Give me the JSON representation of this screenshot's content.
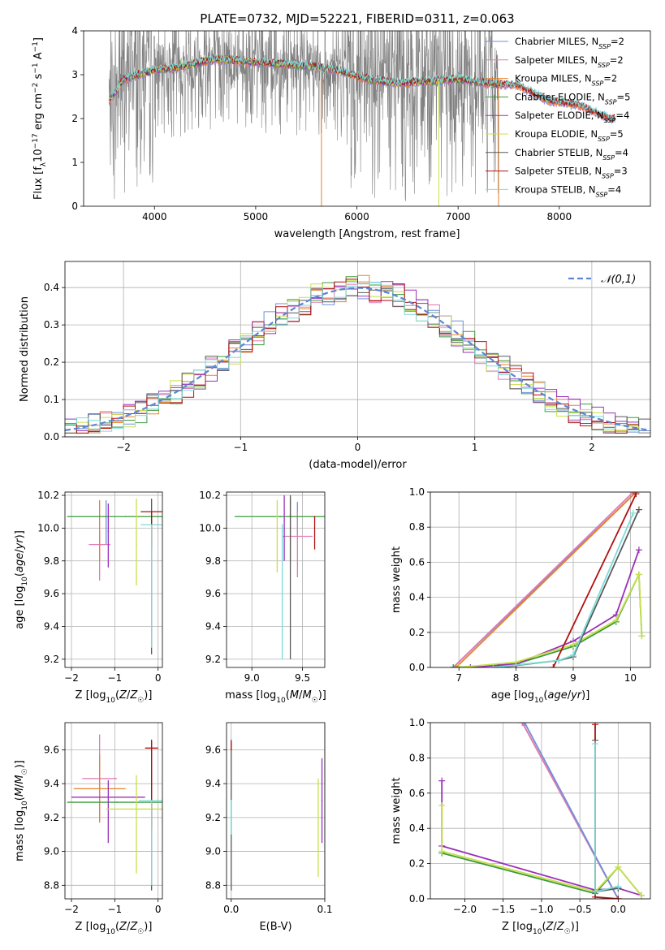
{
  "title": "PLATE=0732, MJD=52221, FIBERID=0311, z=0.063",
  "colors": {
    "Chabrier MILES": "#6f8fdc",
    "Salpeter MILES": "#e07ab4",
    "Kroupa MILES": "#e8822a",
    "Chabrier ELODIE": "#3c9a3c",
    "Salpeter ELODIE": "#9a30b8",
    "Kroupa ELODIE": "#c8e04a",
    "Chabrier STELIB": "#5a5a5a",
    "Salpeter STELIB": "#b01010",
    "Kroupa STELIB": "#7adcd8",
    "data": "#808080"
  },
  "legend": [
    {
      "pre": "Chabrier MILES, N",
      "sub": "SSP",
      "post": "=2",
      "key": "Chabrier MILES"
    },
    {
      "pre": "Salpeter MILES, N",
      "sub": "SSP",
      "post": "=2",
      "key": "Salpeter MILES"
    },
    {
      "pre": "Kroupa MILES, N",
      "sub": "SSP",
      "post": "=2",
      "key": "Kroupa MILES"
    },
    {
      "pre": "Chabrier ELODIE, N",
      "sub": "SSP",
      "post": "=5",
      "key": "Chabrier ELODIE"
    },
    {
      "pre": "Salpeter ELODIE, N",
      "sub": "SSP",
      "post": "=4",
      "key": "Salpeter ELODIE"
    },
    {
      "pre": "Kroupa ELODIE, N",
      "sub": "SSP",
      "post": "=5",
      "key": "Kroupa ELODIE"
    },
    {
      "pre": "Chabrier STELIB, N",
      "sub": "SSP",
      "post": "=4",
      "key": "Chabrier STELIB"
    },
    {
      "pre": "Salpeter STELIB, N",
      "sub": "SSP",
      "post": "=3",
      "key": "Salpeter STELIB"
    },
    {
      "pre": "Kroupa STELIB, N",
      "sub": "SSP",
      "post": "=4",
      "key": "Kroupa STELIB"
    }
  ],
  "chart_data": [
    {
      "type": "line",
      "panel": "spectrum",
      "xlabel": "wavelength [Angstrom, rest frame]",
      "ylabel": "Flux [f_λ 10^-17 erg cm^-2 s^-1 A^-1]",
      "xlim": [
        3300,
        8900
      ],
      "ylim": [
        0,
        4
      ],
      "xticks": [
        4000,
        5000,
        6000,
        7000,
        8000
      ],
      "yticks": [
        0,
        1,
        2,
        3,
        4
      ],
      "grid": false,
      "legend_position": "right",
      "continuum": {
        "x": [
          3550,
          3700,
          4000,
          4300,
          4600,
          4900,
          5200,
          5500,
          5800,
          6100,
          6400,
          6700,
          7000,
          7300,
          7600,
          7900,
          8200,
          8500
        ],
        "y": [
          2.4,
          2.9,
          3.1,
          3.2,
          3.35,
          3.3,
          3.25,
          3.2,
          3.1,
          2.9,
          2.8,
          2.85,
          2.9,
          2.8,
          2.75,
          2.4,
          2.3,
          2.0
        ]
      },
      "data_extent": [
        3550,
        7400
      ]
    },
    {
      "type": "step",
      "panel": "residual-distribution",
      "xlabel": "(data-model)/error",
      "ylabel": "Normed distribution",
      "xlim": [
        -2.5,
        2.5
      ],
      "ylim": [
        0,
        0.47
      ],
      "xticks": [
        -2,
        -1,
        0,
        1,
        2
      ],
      "yticks": [
        0.0,
        0.1,
        0.2,
        0.3,
        0.4
      ],
      "grid": true,
      "legend": "𝒩(0,1)",
      "legend_position": "top-right",
      "reference": {
        "name": "𝒩(0,1)",
        "mean": 0,
        "sigma": 1,
        "color": "#5b86d6"
      }
    },
    {
      "type": "errorbar",
      "panel": "age-vs-Z",
      "xlabel": "Z [log10(Z/Z☉)]",
      "ylabel": "age [log10(age/yr)]",
      "xlim": [
        -2.15,
        0.1
      ],
      "ylim": [
        9.15,
        10.22
      ],
      "xticks": [
        -2,
        -1,
        0
      ],
      "yticks": [
        9.2,
        9.4,
        9.6,
        9.8,
        10.0,
        10.2
      ],
      "grid": true,
      "points": [
        {
          "key": "Chabrier MILES",
          "x": -1.2,
          "xerr": 0.0,
          "y": 10.07,
          "yerr": [
            0.17,
            0.1
          ]
        },
        {
          "key": "Salpeter MILES",
          "x": -1.35,
          "xerr": 0.25,
          "y": 9.9,
          "yerr": [
            0.22,
            0.08
          ]
        },
        {
          "key": "Kroupa MILES",
          "x": -1.35,
          "xerr": 0.0,
          "y": 9.95,
          "yerr": [
            0.15,
            0.22
          ]
        },
        {
          "key": "Chabrier ELODIE",
          "x": -0.75,
          "xerr": 1.35,
          "y": 10.07,
          "yerr": [
            0.0,
            0.0
          ]
        },
        {
          "key": "Salpeter ELODIE",
          "x": -1.15,
          "xerr": 0.0,
          "y": 9.98,
          "yerr": [
            0.22,
            0.17
          ]
        },
        {
          "key": "Kroupa ELODIE",
          "x": -0.5,
          "xerr": 0.0,
          "y": 9.9,
          "yerr": [
            0.25,
            0.28
          ]
        },
        {
          "key": "Chabrier STELIB",
          "x": -0.15,
          "xerr": 0.0,
          "y": 10.05,
          "yerr": [
            0.82,
            0.13
          ]
        },
        {
          "key": "Salpeter STELIB",
          "x": -0.15,
          "xerr": 0.25,
          "y": 10.1,
          "yerr": [
            0.22,
            0.0
          ]
        },
        {
          "key": "Kroupa STELIB",
          "x": -0.15,
          "xerr": 0.25,
          "y": 10.02,
          "yerr": [
            0.75,
            0.0
          ]
        }
      ]
    },
    {
      "type": "errorbar",
      "panel": "age-vs-mass",
      "xlabel": "mass [log10(M/M☉)]",
      "ylabel": "",
      "xlim": [
        8.75,
        9.72
      ],
      "ylim": [
        9.15,
        10.22
      ],
      "xticks": [
        9.0,
        9.5
      ],
      "yticks": [
        9.2,
        9.4,
        9.6,
        9.8,
        10.0,
        10.2
      ],
      "grid": true,
      "points": [
        {
          "key": "Chabrier MILES",
          "x": 9.45,
          "xerr": 0.0,
          "y": 10.06,
          "yerr": [
            0.1,
            0.1
          ]
        },
        {
          "key": "Salpeter MILES",
          "x": 9.45,
          "xerr": 0.15,
          "y": 9.95,
          "yerr": [
            0.25,
            0.15
          ]
        },
        {
          "key": "Kroupa MILES",
          "x": 9.38,
          "xerr": 0.0,
          "y": 9.95,
          "yerr": [
            0.15,
            0.23
          ]
        },
        {
          "key": "Chabrier ELODIE",
          "x": 9.28,
          "xerr": 0.45,
          "y": 10.07,
          "yerr": [
            0.0,
            0.0
          ]
        },
        {
          "key": "Salpeter ELODIE",
          "x": 9.32,
          "xerr": 0.0,
          "y": 10.0,
          "yerr": [
            0.2,
            0.2
          ]
        },
        {
          "key": "Kroupa ELODIE",
          "x": 9.25,
          "xerr": 0.0,
          "y": 9.95,
          "yerr": [
            0.22,
            0.22
          ]
        },
        {
          "key": "Chabrier STELIB",
          "x": 9.38,
          "xerr": 0.0,
          "y": 10.08,
          "yerr": [
            0.88,
            0.12
          ]
        },
        {
          "key": "Salpeter STELIB",
          "x": 9.62,
          "xerr": 0.0,
          "y": 10.07,
          "yerr": [
            0.2,
            0.0
          ]
        },
        {
          "key": "Kroupa STELIB",
          "x": 9.3,
          "xerr": 0.0,
          "y": 10.02,
          "yerr": [
            0.82,
            0.0
          ]
        }
      ]
    },
    {
      "type": "line",
      "panel": "mass-weight-vs-age",
      "xlabel": "age [log10(age/yr)]",
      "ylabel": "mass weight",
      "xlim": [
        6.5,
        10.35
      ],
      "ylim": [
        0,
        1
      ],
      "xticks": [
        7,
        8,
        9,
        10
      ],
      "yticks": [
        0.0,
        0.2,
        0.4,
        0.6,
        0.8,
        1.0
      ],
      "grid": true,
      "series": [
        {
          "key": "Chabrier MILES",
          "x": [
            6.9,
            10.1
          ],
          "y": [
            0.0,
            1.0
          ]
        },
        {
          "key": "Salpeter MILES",
          "x": [
            6.9,
            10.05
          ],
          "y": [
            0.0,
            1.0
          ]
        },
        {
          "key": "Kroupa MILES",
          "x": [
            6.95,
            10.1
          ],
          "y": [
            0.0,
            1.0
          ]
        },
        {
          "key": "Chabrier ELODIE",
          "x": [
            6.9,
            8.0,
            9.0,
            9.75,
            10.15,
            10.2
          ],
          "y": [
            0.0,
            0.02,
            0.12,
            0.26,
            0.53,
            0.18
          ]
        },
        {
          "key": "Salpeter ELODIE",
          "x": [
            7.2,
            8.0,
            9.0,
            9.75,
            10.15
          ],
          "y": [
            0.0,
            0.02,
            0.15,
            0.3,
            0.67
          ]
        },
        {
          "key": "Kroupa ELODIE",
          "x": [
            7.0,
            8.0,
            9.0,
            9.75,
            10.15,
            10.2
          ],
          "y": [
            0.0,
            0.03,
            0.13,
            0.27,
            0.53,
            0.18
          ]
        },
        {
          "key": "Chabrier STELIB",
          "x": [
            7.7,
            8.75,
            9.0,
            10.15
          ],
          "y": [
            0.0,
            0.04,
            0.06,
            0.9
          ]
        },
        {
          "key": "Salpeter STELIB",
          "x": [
            8.65,
            10.1
          ],
          "y": [
            0.0,
            0.99
          ]
        },
        {
          "key": "Kroupa STELIB",
          "x": [
            7.6,
            8.75,
            9.0,
            10.05
          ],
          "y": [
            0.0,
            0.04,
            0.07,
            0.88
          ]
        }
      ]
    },
    {
      "type": "errorbar",
      "panel": "mass-vs-Z",
      "xlabel": "Z [log10(Z/Z☉)]",
      "ylabel": "mass [log10(M/M☉)]",
      "xlim": [
        -2.15,
        0.1
      ],
      "ylim": [
        8.72,
        9.76
      ],
      "xticks": [
        -2,
        -1,
        0
      ],
      "yticks": [
        8.8,
        9.0,
        9.2,
        9.4,
        9.6
      ],
      "grid": true,
      "points": [
        {
          "key": "Chabrier MILES",
          "x": -1.0,
          "xerr": 0.0,
          "y": 9.43,
          "yerr": [
            0.0,
            0.0
          ]
        },
        {
          "key": "Salpeter MILES",
          "x": -1.35,
          "xerr": 0.4,
          "y": 9.43,
          "yerr": [
            0.25,
            0.26
          ]
        },
        {
          "key": "Kroupa MILES",
          "x": -1.35,
          "xerr": 0.6,
          "y": 9.37,
          "yerr": [
            0.2,
            0.2
          ]
        },
        {
          "key": "Chabrier ELODIE",
          "x": -0.95,
          "xerr": 1.15,
          "y": 9.29,
          "yerr": [
            0.0,
            0.0
          ]
        },
        {
          "key": "Salpeter ELODIE",
          "x": -1.15,
          "xerr": 0.85,
          "y": 9.32,
          "yerr": [
            0.27,
            0.1
          ]
        },
        {
          "key": "Kroupa ELODIE",
          "x": -0.5,
          "xerr": 0.7,
          "y": 9.25,
          "yerr": [
            0.38,
            0.2
          ]
        },
        {
          "key": "Chabrier STELIB",
          "x": -0.15,
          "xerr": 0.0,
          "y": 9.35,
          "yerr": [
            0.58,
            0.3
          ]
        },
        {
          "key": "Salpeter STELIB",
          "x": -0.15,
          "xerr": 0.15,
          "y": 9.61,
          "yerr": [
            0.47,
            0.05
          ]
        },
        {
          "key": "Kroupa STELIB",
          "x": -0.15,
          "xerr": 0.3,
          "y": 9.3,
          "yerr": [
            0.5,
            0.0
          ]
        }
      ]
    },
    {
      "type": "errorbar",
      "panel": "mass-vs-ebv",
      "xlabel": "E(B-V)",
      "ylabel": "",
      "xlim": [
        -0.005,
        0.1
      ],
      "ylim": [
        8.72,
        9.76
      ],
      "xticks": [
        0.0,
        0.1
      ],
      "yticks": [
        8.8,
        9.0,
        9.2,
        9.4,
        9.6
      ],
      "grid": true,
      "points": [
        {
          "key": "Chabrier STELIB",
          "x": 0.0,
          "xerr": 0.0,
          "y": 9.22,
          "yerr": [
            0.45,
            0.44
          ]
        },
        {
          "key": "Salpeter STELIB",
          "x": 0.0,
          "xerr": 0.0,
          "y": 9.6,
          "yerr": [
            0.0,
            0.05
          ]
        },
        {
          "key": "Kroupa STELIB",
          "x": 0.0,
          "xerr": 0.0,
          "y": 9.3,
          "yerr": [
            0.2,
            0.0
          ]
        },
        {
          "key": "Kroupa ELODIE",
          "x": 0.093,
          "xerr": 0.0,
          "y": 9.15,
          "yerr": [
            0.3,
            0.28
          ]
        },
        {
          "key": "Salpeter ELODIE",
          "x": 0.097,
          "xerr": 0.0,
          "y": 9.3,
          "yerr": [
            0.25,
            0.25
          ]
        }
      ]
    },
    {
      "type": "line",
      "panel": "mass-weight-vs-Z",
      "xlabel": "Z [log10(Z/Z☉)]",
      "ylabel": "mass weight",
      "xlim": [
        -2.45,
        0.42
      ],
      "ylim": [
        0,
        1
      ],
      "xticks": [
        -2.0,
        -1.5,
        -1.0,
        -0.5,
        0.0
      ],
      "yticks": [
        0.0,
        0.2,
        0.4,
        0.6,
        0.8,
        1.0
      ],
      "grid": true,
      "series": [
        {
          "key": "Kroupa MILES",
          "x": [
            -1.25,
            0.0
          ],
          "y": [
            1.0,
            0.0
          ]
        },
        {
          "key": "Salpeter MILES",
          "x": [
            -1.25,
            0.0
          ],
          "y": [
            1.0,
            0.0
          ]
        },
        {
          "key": "Chabrier MILES",
          "x": [
            -1.22,
            0.0
          ],
          "y": [
            1.0,
            0.0
          ]
        },
        {
          "key": "Chabrier ELODIE",
          "x": [
            -2.3,
            -0.3,
            0.0,
            0.3
          ],
          "y": [
            0.26,
            0.03,
            0.18,
            0.02
          ]
        },
        {
          "key": "Salpeter ELODIE",
          "x": [
            -2.3,
            -2.3,
            -0.3,
            0.0,
            0.3
          ],
          "y": [
            0.67,
            0.3,
            0.05,
            0.06,
            0.02
          ]
        },
        {
          "key": "Kroupa ELODIE",
          "x": [
            -2.3,
            -2.3,
            -0.3,
            0.0,
            0.3
          ],
          "y": [
            0.53,
            0.27,
            0.04,
            0.18,
            0.02
          ]
        },
        {
          "key": "Chabrier STELIB",
          "x": [
            -0.3,
            -0.3,
            0.0
          ],
          "y": [
            0.9,
            0.04,
            0.06
          ]
        },
        {
          "key": "Salpeter STELIB",
          "x": [
            -0.3,
            -0.3,
            0.0
          ],
          "y": [
            0.99,
            0.01,
            0.0
          ]
        },
        {
          "key": "Kroupa STELIB",
          "x": [
            -0.3,
            -0.3,
            0.0
          ],
          "y": [
            0.88,
            0.04,
            0.07
          ]
        }
      ]
    }
  ]
}
